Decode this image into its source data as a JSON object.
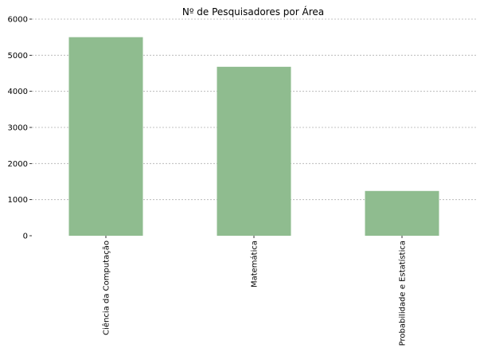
{
  "chart_data": {
    "type": "bar",
    "title": "Nº de Pesquisadores por Área",
    "xlabel": "",
    "ylabel": "",
    "categories": [
      "Ciência da Computação",
      "Matemática",
      "Probabilidade e Estatística"
    ],
    "values": [
      5500,
      4680,
      1240
    ],
    "ylim": [
      0,
      6000
    ],
    "yticks": [
      "0",
      "1000",
      "2000",
      "3000",
      "4000",
      "5000",
      "6000"
    ],
    "grid": "horizontal dotted",
    "legend": "none",
    "bar_color": "#8fbc8f"
  }
}
